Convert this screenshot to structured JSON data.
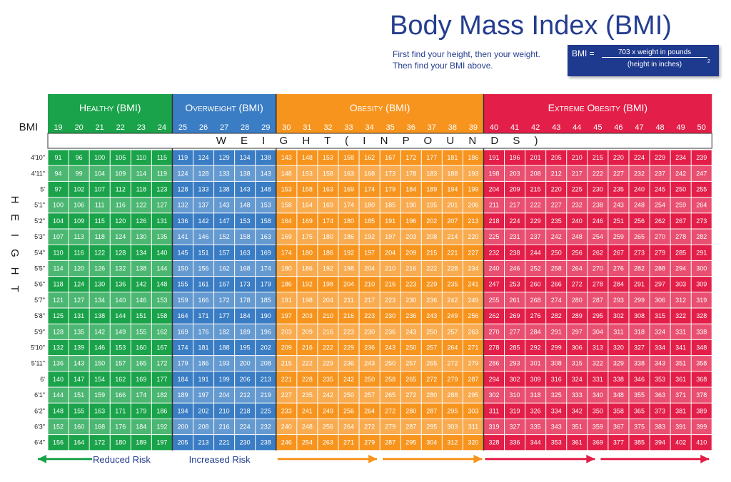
{
  "title": "Body Mass Index (BMI)",
  "instructions": [
    "First find your height, then your weight.",
    "Then find your BMI above."
  ],
  "formula": {
    "lhs": "BMI =",
    "numerator": "703 x weight in pounds",
    "denominator": "(height in inches)",
    "exponent": "2"
  },
  "chart_data": {
    "type": "table",
    "row_header_label": "BMI",
    "weight_axis_label": "W E I G H T ( I N P O U N D S )",
    "height_axis_label": "H E I G H T",
    "categories": [
      {
        "name": "Healthy (BMI)",
        "color": "#1aa34a",
        "bmi": [
          19,
          20,
          21,
          22,
          23,
          24
        ]
      },
      {
        "name": "Overweight (BMI)",
        "color": "#3a7dc4",
        "bmi": [
          25,
          26,
          27,
          28,
          29
        ]
      },
      {
        "name": "Obesity (BMI)",
        "color": "#f7941d",
        "bmi": [
          30,
          31,
          32,
          33,
          34,
          35,
          36,
          37,
          38,
          39
        ]
      },
      {
        "name": "Extreme Obesity (BMI)",
        "color": "#e31e48",
        "bmi": [
          40,
          41,
          42,
          43,
          44,
          45,
          46,
          47,
          48,
          49,
          50
        ]
      }
    ],
    "heights": [
      "4'10\"",
      "4'11\"",
      "5'",
      "5'1\"",
      "5'2\"",
      "5'3\"",
      "5'4\"",
      "5'5\"",
      "5'6\"",
      "5'7\"",
      "5'8\"",
      "5'9\"",
      "5'10\"",
      "5'11\"",
      "6'",
      "6'1\"",
      "6'2\"",
      "6'3\"",
      "6'4\""
    ],
    "weights": [
      [
        91,
        96,
        100,
        105,
        110,
        115,
        119,
        124,
        129,
        134,
        138,
        143,
        148,
        153,
        158,
        162,
        167,
        172,
        177,
        181,
        186,
        191,
        196,
        201,
        205,
        210,
        215,
        220,
        224,
        229,
        234,
        239
      ],
      [
        94,
        99,
        104,
        109,
        114,
        119,
        124,
        128,
        133,
        138,
        143,
        148,
        153,
        158,
        163,
        168,
        173,
        178,
        183,
        188,
        193,
        198,
        203,
        208,
        212,
        217,
        222,
        227,
        232,
        237,
        242,
        247
      ],
      [
        97,
        102,
        107,
        112,
        118,
        123,
        128,
        133,
        138,
        143,
        148,
        153,
        158,
        163,
        169,
        174,
        179,
        184,
        189,
        194,
        199,
        204,
        209,
        215,
        220,
        225,
        230,
        235,
        240,
        245,
        250,
        255
      ],
      [
        100,
        106,
        111,
        116,
        122,
        127,
        132,
        137,
        143,
        148,
        153,
        158,
        164,
        169,
        174,
        180,
        185,
        190,
        195,
        201,
        206,
        211,
        217,
        222,
        227,
        232,
        238,
        243,
        248,
        254,
        259,
        264
      ],
      [
        104,
        109,
        115,
        120,
        126,
        131,
        136,
        142,
        147,
        153,
        158,
        164,
        169,
        174,
        180,
        185,
        191,
        196,
        202,
        207,
        213,
        218,
        224,
        229,
        235,
        240,
        246,
        251,
        256,
        262,
        267,
        273
      ],
      [
        107,
        113,
        118,
        124,
        130,
        135,
        141,
        146,
        152,
        158,
        163,
        169,
        175,
        180,
        186,
        192,
        197,
        203,
        208,
        214,
        220,
        225,
        231,
        237,
        242,
        248,
        254,
        259,
        265,
        270,
        278,
        282
      ],
      [
        110,
        116,
        122,
        128,
        134,
        140,
        145,
        151,
        157,
        163,
        169,
        174,
        180,
        186,
        192,
        197,
        204,
        209,
        215,
        221,
        227,
        232,
        238,
        244,
        250,
        256,
        262,
        267,
        273,
        279,
        285,
        291
      ],
      [
        114,
        120,
        126,
        132,
        138,
        144,
        150,
        156,
        162,
        168,
        174,
        180,
        186,
        192,
        198,
        204,
        210,
        216,
        222,
        228,
        234,
        240,
        246,
        252,
        258,
        264,
        270,
        276,
        282,
        288,
        294,
        300
      ],
      [
        118,
        124,
        130,
        136,
        142,
        148,
        155,
        161,
        167,
        173,
        179,
        186,
        192,
        198,
        204,
        210,
        216,
        223,
        229,
        235,
        241,
        247,
        253,
        260,
        266,
        272,
        278,
        284,
        291,
        297,
        303,
        309
      ],
      [
        121,
        127,
        134,
        140,
        146,
        153,
        159,
        166,
        172,
        178,
        185,
        191,
        198,
        204,
        211,
        217,
        223,
        230,
        236,
        242,
        249,
        255,
        261,
        268,
        274,
        280,
        287,
        293,
        299,
        306,
        312,
        319
      ],
      [
        125,
        131,
        138,
        144,
        151,
        158,
        164,
        171,
        177,
        184,
        190,
        197,
        203,
        210,
        216,
        223,
        230,
        236,
        243,
        249,
        256,
        262,
        269,
        276,
        282,
        289,
        295,
        302,
        308,
        315,
        322,
        328
      ],
      [
        128,
        135,
        142,
        149,
        155,
        162,
        169,
        176,
        182,
        189,
        196,
        203,
        209,
        216,
        223,
        230,
        236,
        243,
        250,
        257,
        263,
        270,
        277,
        284,
        291,
        297,
        304,
        311,
        318,
        324,
        331,
        338
      ],
      [
        132,
        139,
        146,
        153,
        160,
        167,
        174,
        181,
        188,
        195,
        202,
        209,
        216,
        222,
        229,
        236,
        243,
        250,
        257,
        264,
        271,
        278,
        285,
        292,
        299,
        306,
        313,
        320,
        327,
        334,
        341,
        348
      ],
      [
        136,
        143,
        150,
        157,
        165,
        172,
        179,
        186,
        193,
        200,
        208,
        215,
        222,
        229,
        236,
        243,
        250,
        257,
        265,
        272,
        279,
        286,
        293,
        301,
        308,
        315,
        322,
        329,
        338,
        343,
        351,
        358
      ],
      [
        140,
        147,
        154,
        162,
        169,
        177,
        184,
        191,
        199,
        206,
        213,
        221,
        228,
        235,
        242,
        250,
        258,
        265,
        272,
        279,
        287,
        294,
        302,
        309,
        316,
        324,
        331,
        338,
        346,
        353,
        361,
        368
      ],
      [
        144,
        151,
        159,
        166,
        174,
        182,
        189,
        197,
        204,
        212,
        219,
        227,
        235,
        242,
        250,
        257,
        265,
        272,
        280,
        288,
        295,
        302,
        310,
        318,
        325,
        333,
        340,
        348,
        355,
        363,
        371,
        378
      ],
      [
        148,
        155,
        163,
        171,
        179,
        186,
        194,
        202,
        210,
        218,
        225,
        233,
        241,
        249,
        256,
        264,
        272,
        280,
        287,
        295,
        303,
        311,
        319,
        326,
        334,
        342,
        350,
        358,
        365,
        373,
        381,
        389
      ],
      [
        152,
        160,
        168,
        176,
        184,
        192,
        200,
        208,
        216,
        224,
        232,
        240,
        248,
        256,
        264,
        272,
        279,
        287,
        295,
        303,
        311,
        319,
        327,
        335,
        343,
        351,
        359,
        367,
        375,
        383,
        391,
        399
      ],
      [
        156,
        164,
        172,
        180,
        189,
        197,
        205,
        213,
        221,
        230,
        238,
        246,
        254,
        263,
        271,
        279,
        287,
        295,
        304,
        312,
        320,
        328,
        336,
        344,
        353,
        361,
        369,
        377,
        385,
        394,
        402,
        410
      ]
    ],
    "risk_labels": [
      "Reduced Risk",
      "Increased Risk"
    ],
    "arrow_colors": [
      "#1aa34a",
      "#3a7dc4",
      "#f7941d",
      "#f7941d",
      "#e31e48",
      "#e31e48"
    ]
  }
}
